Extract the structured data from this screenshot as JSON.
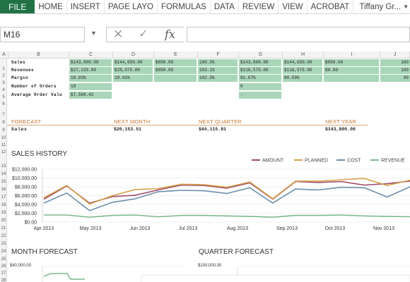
{
  "ribbon": {
    "tabs": [
      "FILE",
      "HOME",
      "INSERT",
      "PAGE LAYO",
      "FORMULAS",
      "DATA",
      "REVIEW",
      "VIEW",
      "ACROBAT"
    ],
    "user": "Tiffany Gr..."
  },
  "formula_bar": {
    "name_box": "M16",
    "cancel_icon": "✕",
    "enter_icon": "✓",
    "fx_label": "fx",
    "formula": ""
  },
  "columns": [
    "A",
    "B",
    "C",
    "D",
    "E",
    "F",
    "G",
    "H",
    "I",
    "J"
  ],
  "row_numbers": [
    "1",
    "2",
    "3",
    "4",
    "5",
    "6",
    "7",
    "8",
    "9",
    "10",
    "11",
    "12",
    "13",
    "14",
    "15",
    "16",
    "17",
    "18",
    "19",
    "20",
    "21",
    "22",
    "23",
    "24",
    "25",
    "26",
    "27",
    "28"
  ],
  "summary": {
    "rows": [
      {
        "label": "Sales",
        "cells": [
          "$143,800.00",
          "$144,650.00",
          "$850.00",
          "100.5%",
          "$143,800.00",
          "$144,650.00",
          "$850.00",
          "100"
        ]
      },
      {
        "label": "Revenues",
        "cells": [
          "$27,225.00",
          "$28,075.00",
          "$850.00",
          "103.1%",
          "$116,575.00",
          "$116,575.00",
          "$0.00",
          "100"
        ]
      },
      {
        "label": "Margin",
        "cells": [
          "18.93%",
          "19.41%",
          "",
          "102.5%",
          "81.07%",
          "80.59%",
          "",
          "99"
        ]
      },
      {
        "label": "Number of Orders",
        "cells": [
          "19",
          "",
          "",
          "",
          "0",
          "",
          "",
          ""
        ]
      },
      {
        "label": "Average Order Valu",
        "cells": [
          "$7,568.42",
          "",
          "",
          "",
          "-",
          "",
          "",
          ""
        ]
      }
    ]
  },
  "forecast": {
    "headers": [
      "FORECAST",
      "NEXT MONTH",
      "NEXT QUARTER",
      "NEXT YEAR"
    ],
    "row_label": "Sales",
    "values": [
      "$20,153.51",
      "$44,115.91",
      "$143,800.00"
    ]
  },
  "sales_history": {
    "title": "SALES HISTORY",
    "legend": [
      "AMOUNT",
      "PLANNED",
      "COST",
      "REVENUE"
    ]
  },
  "month_forecast": {
    "title": "MONTH FORECAST",
    "y_label": "$40,000.00"
  },
  "quarter_forecast": {
    "title": "QUARTER FORECAST",
    "y_label": "$100,000.00"
  },
  "chart_data": {
    "type": "line",
    "title": "SALES HISTORY",
    "x": [
      "Apr 2013",
      "Apr 2013",
      "Apr 2013",
      "May 2013",
      "May 2013",
      "Jun 2013",
      "Jun 2013",
      "Jul 2013",
      "Aug 2013",
      "Aug 2013",
      "Sep 2013",
      "Sep 2013",
      "Sep 2013",
      "Oct 2013",
      "Nov 2013",
      "Nov 2013",
      "Nov 2013"
    ],
    "x_ticks": [
      "Apr 2013",
      "May 2013",
      "Jun 2013",
      "Jul 2013",
      "Aug 2013",
      "Sep 2013",
      "Oct 2013",
      "Nov 2013"
    ],
    "y_ticks": [
      "$12,000.00",
      "$10,000.00",
      "$8,000.00",
      "$6,000.00",
      "$4,000.00",
      "$2,000.00",
      "$0.00"
    ],
    "ylim": [
      0,
      12000
    ],
    "grid": true,
    "legend_position": "top-right",
    "series": [
      {
        "name": "AMOUNT",
        "color": "#9e4a6a",
        "values": [
          5200,
          8200,
          4300,
          5800,
          6100,
          7300,
          8400,
          8300,
          7700,
          8900,
          5200,
          9200,
          9000,
          9200,
          8400,
          8700,
          9300
        ]
      },
      {
        "name": "PLANNED",
        "color": "#d6a24a",
        "values": [
          5500,
          8300,
          4100,
          6000,
          7400,
          7600,
          8600,
          8500,
          7900,
          9100,
          5300,
          9300,
          9300,
          9600,
          9900,
          8300,
          9500
        ]
      },
      {
        "name": "COST",
        "color": "#6d8fab",
        "values": [
          4300,
          6600,
          2600,
          4500,
          5300,
          6900,
          7200,
          7100,
          6500,
          7800,
          4300,
          7500,
          7300,
          7900,
          7800,
          5700,
          8000
        ]
      },
      {
        "name": "REVENUE",
        "color": "#7db88e",
        "values": [
          1600,
          1600,
          1100,
          1500,
          1600,
          1200,
          1500,
          1500,
          1400,
          1300,
          1100,
          1500,
          1500,
          1600,
          1400,
          1300,
          1200
        ]
      }
    ]
  }
}
